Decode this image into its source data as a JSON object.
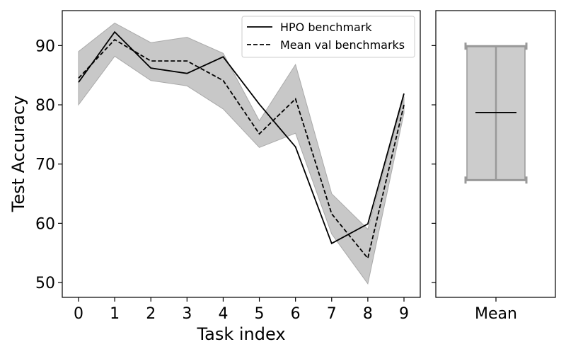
{
  "chart_data": [
    {
      "type": "line",
      "xlabel": "Task index",
      "ylabel": "Test Accuracy",
      "x": [
        0,
        1,
        2,
        3,
        4,
        5,
        6,
        7,
        8,
        9
      ],
      "xticks": [
        "0",
        "1",
        "2",
        "3",
        "4",
        "5",
        "6",
        "7",
        "8",
        "9"
      ],
      "yticks": [
        "50",
        "60",
        "70",
        "80",
        "90"
      ],
      "xlim": [
        -0.45,
        9.45
      ],
      "ylim": [
        47.5,
        95.9
      ],
      "legend_position": "top-right",
      "series": [
        {
          "name": "HPO benchmark",
          "style": "solid",
          "color": "#000000",
          "values": [
            83.8,
            92.3,
            86.2,
            85.3,
            88.1,
            80.1,
            72.9,
            56.6,
            59.9,
            81.9
          ]
        },
        {
          "name": "Mean val benchmarks",
          "style": "dashed",
          "color": "#000000",
          "values": [
            84.5,
            91.0,
            87.4,
            87.4,
            84.1,
            75.1,
            81.0,
            61.6,
            54.1,
            80.0
          ],
          "band_upper": [
            89.0,
            93.8,
            90.5,
            91.4,
            88.7,
            77.3,
            86.8,
            65.0,
            59.0,
            81.4
          ],
          "band_lower": [
            80.0,
            88.2,
            84.1,
            83.2,
            79.3,
            72.8,
            75.2,
            58.2,
            49.8,
            78.6
          ]
        }
      ],
      "band_color": "#c8c8c8"
    },
    {
      "type": "bar",
      "categories": [
        "Mean"
      ],
      "ylim": [
        47.5,
        95.9
      ],
      "box_top": 89.9,
      "box_bottom": 67.3,
      "mean": 78.7,
      "box_fill": "#cccccc",
      "box_edge": "#999999"
    }
  ]
}
